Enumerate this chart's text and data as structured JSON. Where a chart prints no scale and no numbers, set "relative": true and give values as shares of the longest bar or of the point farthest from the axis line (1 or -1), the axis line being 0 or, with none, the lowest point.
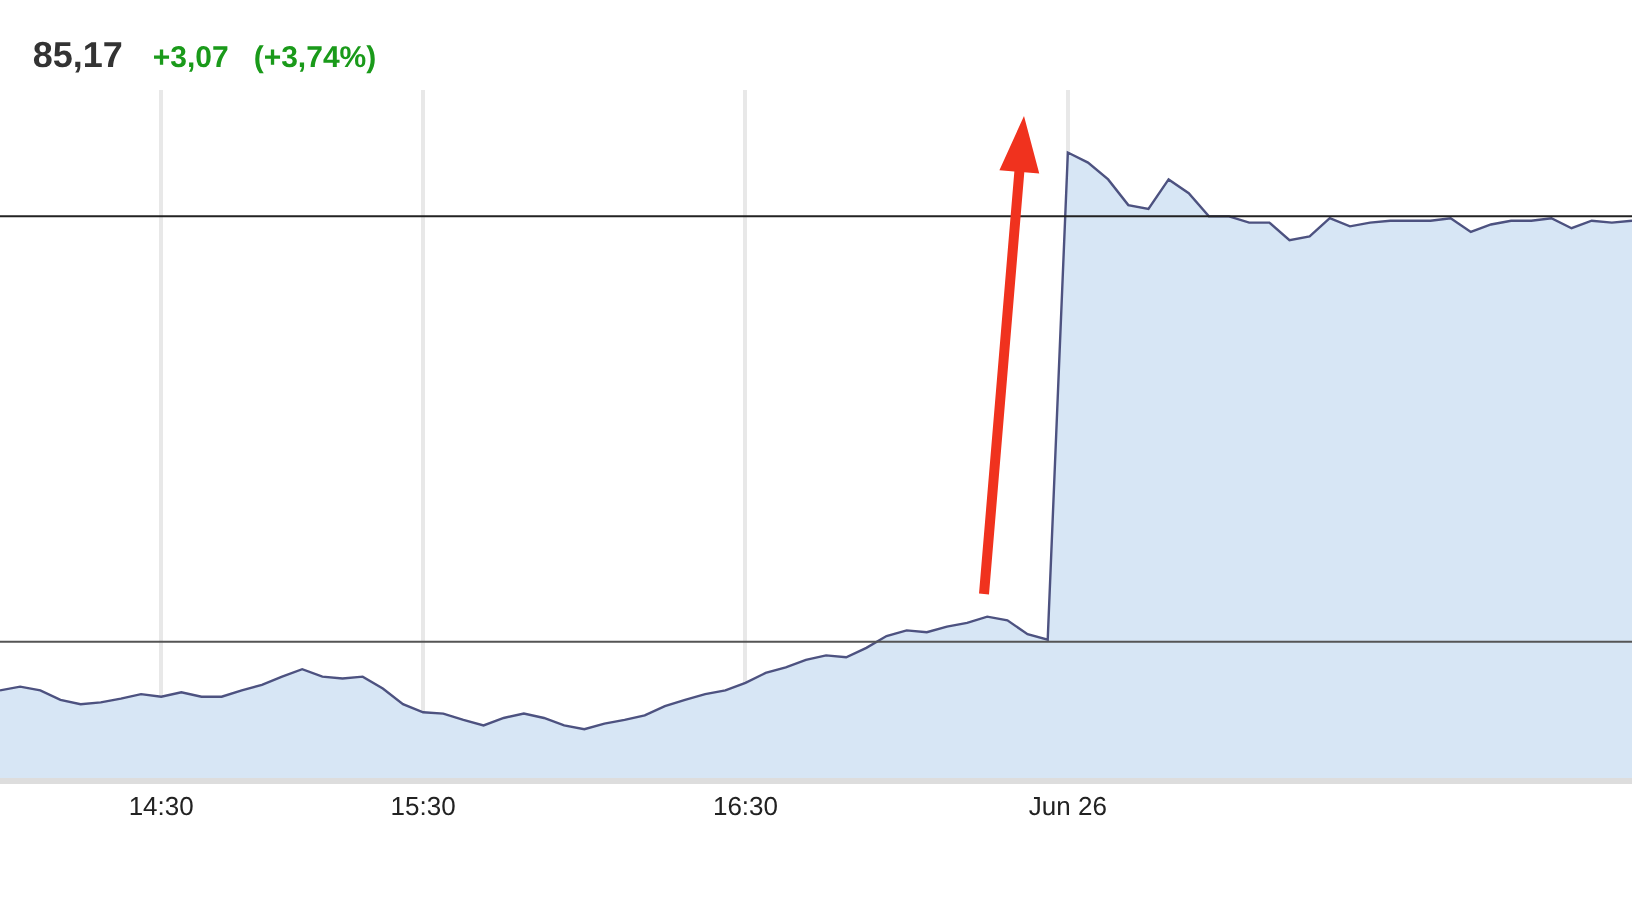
{
  "chart_data": {
    "type": "area",
    "relative": true,
    "title": "85,17",
    "subtitle": "+3,07   (+3,74%)",
    "categories": [
      null,
      null,
      null,
      null,
      null,
      null,
      null,
      null,
      "14:30",
      null,
      null,
      null,
      null,
      null,
      null,
      null,
      null,
      null,
      null,
      null,
      null,
      "15:30",
      null,
      null,
      null,
      null,
      null,
      null,
      null,
      null,
      null,
      null,
      null,
      null,
      null,
      null,
      null,
      "16:30",
      null,
      null,
      null,
      null,
      null,
      null,
      null,
      null,
      null,
      null,
      null,
      null,
      null,
      null,
      null,
      "Jun 26",
      null,
      null,
      null,
      null,
      null,
      null,
      null,
      null,
      null,
      null,
      null,
      null,
      null,
      null,
      null,
      null,
      null,
      null,
      null,
      null,
      null,
      null,
      null,
      null,
      null,
      null,
      null,
      null
    ],
    "series": [
      {
        "color": "#4d5280",
        "values": [
          0.14,
          0.146,
          0.14,
          0.125,
          0.118,
          0.121,
          0.127,
          0.134,
          0.13,
          0.137,
          0.13,
          0.13,
          0.14,
          0.149,
          0.162,
          0.174,
          0.162,
          0.159,
          0.162,
          0.143,
          0.118,
          0.105,
          0.103,
          0.093,
          0.084,
          0.096,
          0.103,
          0.096,
          0.084,
          0.078,
          0.087,
          0.093,
          0.1,
          0.115,
          0.125,
          0.134,
          0.14,
          0.152,
          0.168,
          0.177,
          0.189,
          0.196,
          0.193,
          0.208,
          0.227,
          0.236,
          0.233,
          0.242,
          0.248,
          0.258,
          0.252,
          0.23,
          0.221,
          1,
          0.984,
          0.957,
          0.916,
          0.91,
          0.957,
          0.935,
          0.898,
          0.898,
          0.888,
          0.888,
          0.86,
          0.866,
          0.895,
          0.882,
          0.888,
          0.891,
          0.891,
          0.891,
          0.895,
          0.873,
          0.885,
          0.891,
          0.891,
          0.895,
          0.879,
          0.891,
          0.888,
          0.891
        ]
      }
    ],
    "ref_lines": [
      {
        "axis": "y",
        "value": 0.898,
        "color": "#222222"
      },
      {
        "axis": "y",
        "value": 0.218,
        "color": "#555555"
      }
    ],
    "grid": "x",
    "marker": "none",
    "line_style": "solid"
  }
}
